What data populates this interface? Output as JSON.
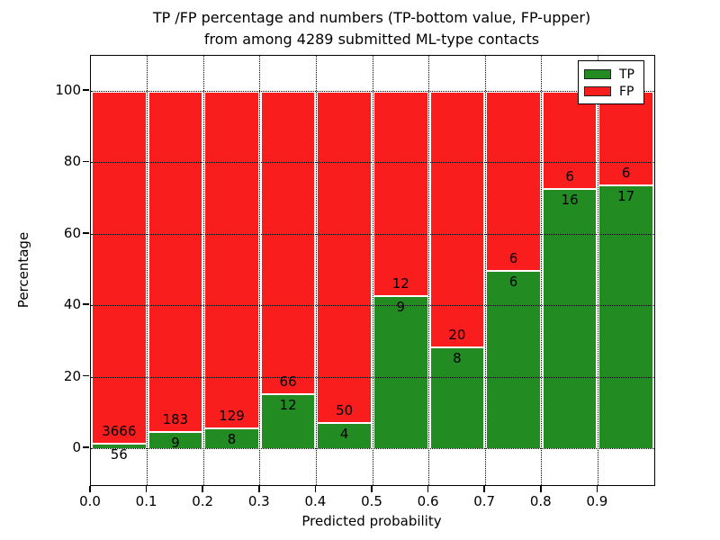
{
  "title_line1": "TP /FP percentage and numbers (TP-bottom value, FP-upper)",
  "title_line2": "from among 4289 submitted ML-type contacts",
  "total_contacts": "4289",
  "chart_data": {
    "type": "bar",
    "stacked": true,
    "normalized_to_percent": true,
    "title": "TP /FP percentage and numbers (TP-bottom value, FP-upper) from among 4289 submitted ML-type contacts",
    "xlabel": "Predicted probability",
    "ylabel": "Percentage",
    "bin_start": [
      0.0,
      0.1,
      0.2,
      0.3,
      0.4,
      0.5,
      0.6,
      0.7,
      0.8,
      0.9
    ],
    "bin_width": 0.1,
    "series": [
      {
        "name": "TP",
        "color": "#228b22",
        "counts": [
          56,
          9,
          8,
          12,
          4,
          9,
          8,
          6,
          16,
          17
        ]
      },
      {
        "name": "FP",
        "color": "#f91d1d",
        "counts": [
          3666,
          183,
          129,
          66,
          50,
          12,
          20,
          6,
          6,
          6
        ]
      }
    ],
    "tp_percent_of_bin": [
      1.5,
      4.7,
      5.8,
      15.4,
      7.4,
      42.9,
      28.6,
      50.0,
      72.7,
      73.9
    ],
    "x_tick_labels": [
      "0.0",
      "0.1",
      "0.2",
      "0.3",
      "0.4",
      "0.5",
      "0.6",
      "0.7",
      "0.8",
      "0.9"
    ],
    "y_tick_labels": [
      "0",
      "20",
      "40",
      "60",
      "80",
      "100"
    ],
    "y_tick_values": [
      0,
      20,
      40,
      60,
      80,
      100
    ],
    "xlim": [
      0.0,
      1.0
    ],
    "ylim": [
      -10,
      110
    ],
    "grid": true,
    "grid_style": "dotted",
    "legend": {
      "position": "upper right",
      "entries": [
        {
          "label": "TP",
          "color": "#228b22"
        },
        {
          "label": "FP",
          "color": "#f91d1d"
        }
      ]
    }
  }
}
